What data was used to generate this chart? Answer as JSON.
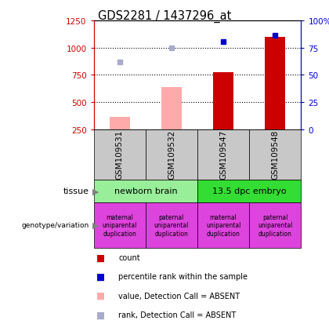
{
  "title": "GDS2281 / 1437296_at",
  "samples": [
    "GSM109531",
    "GSM109532",
    "GSM109547",
    "GSM109548"
  ],
  "bar_values": [
    null,
    null,
    775,
    1095
  ],
  "bar_values_absent": [
    360,
    640,
    null,
    null
  ],
  "rank_values": [
    null,
    null,
    1055,
    1115
  ],
  "rank_values_absent": [
    870,
    1000,
    null,
    null
  ],
  "ylim_left": [
    250,
    1250
  ],
  "ylim_right": [
    0,
    100
  ],
  "yticks_left": [
    250,
    500,
    750,
    1000,
    1250
  ],
  "yticks_right": [
    0,
    25,
    50,
    75,
    100
  ],
  "ytick_labels_right": [
    "0",
    "25",
    "50",
    "75",
    "100%"
  ],
  "tissue_groups": [
    "newborn brain",
    "13.5 dpc embryo"
  ],
  "tissue_colors": [
    "#99ee99",
    "#33dd33"
  ],
  "genotype_labels": [
    "maternal\nuniparental\nduplication",
    "paternal\nuniparental\nduplication",
    "maternal\nuniparental\nduplication",
    "paternal\nuniparental\nduplication"
  ],
  "genotype_color": "#dd44dd",
  "sample_bg_color": "#c8c8c8",
  "left_axis_color": "#cc0000",
  "right_axis_color": "#0000cc",
  "bar_color_solid": "#cc0000",
  "bar_color_absent": "#ffaaaa",
  "rank_color_solid": "#0000cc",
  "rank_color_absent": "#aaaacc",
  "bar_width": 0.4,
  "legend_colors": [
    "#cc0000",
    "#0000cc",
    "#ffaaaa",
    "#aaaacc"
  ],
  "legend_labels": [
    "count",
    "percentile rank within the sample",
    "value, Detection Call = ABSENT",
    "rank, Detection Call = ABSENT"
  ]
}
